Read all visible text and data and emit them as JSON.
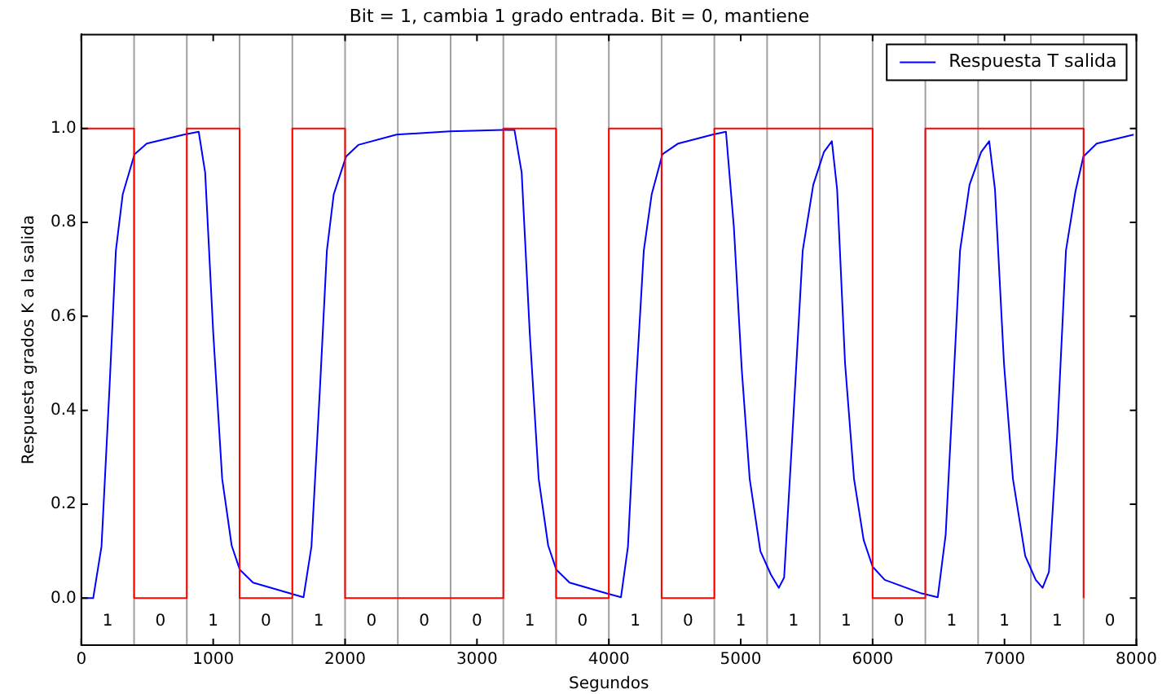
{
  "chart_data": {
    "type": "line",
    "title": "Bit = 1, cambia 1 grado entrada. Bit = 0, mantiene",
    "xlabel": "Segundos",
    "ylabel": "Respuesta grados K a la salida",
    "xlim": [
      0,
      8000
    ],
    "ylim": [
      -0.1,
      1.2
    ],
    "xticks": [
      0,
      1000,
      2000,
      3000,
      4000,
      5000,
      6000,
      7000,
      8000
    ],
    "yticks": [
      {
        "value": 0,
        "label": "0.0"
      },
      0.2,
      0.4,
      0.6,
      0.8,
      {
        "value": 1,
        "label": "1.0"
      }
    ],
    "series": [
      {
        "type": "step",
        "color": "#ff0000",
        "x": [
          0,
          400,
          800,
          1200,
          1600,
          2000,
          2400,
          2800,
          3200,
          3600,
          4000,
          4400,
          4800,
          5200,
          5600,
          6000,
          6400,
          6800,
          7200,
          7600
        ],
        "values": [
          1,
          0,
          1,
          0,
          1,
          0,
          0,
          0,
          1,
          0,
          1,
          0,
          1,
          1,
          1,
          0,
          1,
          1,
          1,
          0
        ]
      },
      {
        "type": "line",
        "name": "Respuesta T salida",
        "color": "#0000ff",
        "x": [
          0,
          90,
          153,
          214,
          262,
          314,
          403,
          496,
          778,
          890,
          939,
          1000,
          1068,
          1140,
          1201,
          1302,
          1584,
          1685,
          1745,
          1810,
          1862,
          1914,
          2007,
          2100,
          2390,
          2793,
          3196,
          3284,
          3339,
          3400,
          3468,
          3540,
          3601,
          3702,
          3984,
          4092,
          4145,
          4205,
          4265,
          4325,
          4406,
          4526,
          4787,
          4888,
          4948,
          5008,
          5068,
          5149,
          5229,
          5289,
          5329,
          5390,
          5470,
          5550,
          5631,
          5691,
          5731,
          5791,
          5859,
          5932,
          6000,
          6092,
          6373,
          6494,
          6554,
          6614,
          6663,
          6735,
          6823,
          6884,
          6928,
          6996,
          7064,
          7157,
          7237,
          7289,
          7337,
          7398,
          7466,
          7538,
          7598,
          7699,
          7980
        ],
        "values": [
          0,
          0,
          0.11,
          0.45,
          0.74,
          0.86,
          0.945,
          0.968,
          0.987,
          0.993,
          0.906,
          0.566,
          0.254,
          0.112,
          0.061,
          0.033,
          0.01,
          0.002,
          0.11,
          0.45,
          0.74,
          0.86,
          0.94,
          0.965,
          0.987,
          0.994,
          0.997,
          0.997,
          0.906,
          0.566,
          0.254,
          0.112,
          0.061,
          0.033,
          0.01,
          0.002,
          0.11,
          0.45,
          0.74,
          0.86,
          0.945,
          0.968,
          0.987,
          0.993,
          0.79,
          0.486,
          0.254,
          0.1,
          0.05,
          0.022,
          0.044,
          0.339,
          0.74,
          0.88,
          0.95,
          0.973,
          0.87,
          0.5,
          0.254,
          0.124,
          0.067,
          0.039,
          0.01,
          0.002,
          0.135,
          0.464,
          0.74,
          0.88,
          0.95,
          0.973,
          0.87,
          0.5,
          0.254,
          0.09,
          0.039,
          0.022,
          0.056,
          0.339,
          0.74,
          0.866,
          0.94,
          0.968,
          0.987
        ]
      }
    ],
    "ref_lines": [
      {
        "axis": "x",
        "value": 400,
        "color": "#a0a0a0"
      },
      {
        "axis": "x",
        "value": 800,
        "color": "#a0a0a0"
      },
      {
        "axis": "x",
        "value": 1200,
        "color": "#a0a0a0"
      },
      {
        "axis": "x",
        "value": 1600,
        "color": "#a0a0a0"
      },
      {
        "axis": "x",
        "value": 2000,
        "color": "#a0a0a0"
      },
      {
        "axis": "x",
        "value": 2400,
        "color": "#a0a0a0"
      },
      {
        "axis": "x",
        "value": 2800,
        "color": "#a0a0a0"
      },
      {
        "axis": "x",
        "value": 3200,
        "color": "#a0a0a0"
      },
      {
        "axis": "x",
        "value": 3600,
        "color": "#a0a0a0"
      },
      {
        "axis": "x",
        "value": 4000,
        "color": "#a0a0a0"
      },
      {
        "axis": "x",
        "value": 4400,
        "color": "#a0a0a0"
      },
      {
        "axis": "x",
        "value": 4800,
        "color": "#a0a0a0"
      },
      {
        "axis": "x",
        "value": 5200,
        "color": "#a0a0a0"
      },
      {
        "axis": "x",
        "value": 5600,
        "color": "#a0a0a0"
      },
      {
        "axis": "x",
        "value": 6000,
        "color": "#a0a0a0"
      },
      {
        "axis": "x",
        "value": 6400,
        "color": "#a0a0a0"
      },
      {
        "axis": "x",
        "value": 6800,
        "color": "#a0a0a0"
      },
      {
        "axis": "x",
        "value": 7200,
        "color": "#a0a0a0"
      },
      {
        "axis": "x",
        "value": 7600,
        "color": "#a0a0a0"
      }
    ],
    "annotations": [
      "1",
      "0",
      "1",
      "0",
      "1",
      "0",
      "0",
      "0",
      "1",
      "0",
      "1",
      "0",
      "1",
      "1",
      "1",
      "0",
      "1",
      "1",
      "1",
      "0"
    ],
    "legend": "top right",
    "grid": false,
    "marker": "none",
    "line_style": "solid"
  }
}
